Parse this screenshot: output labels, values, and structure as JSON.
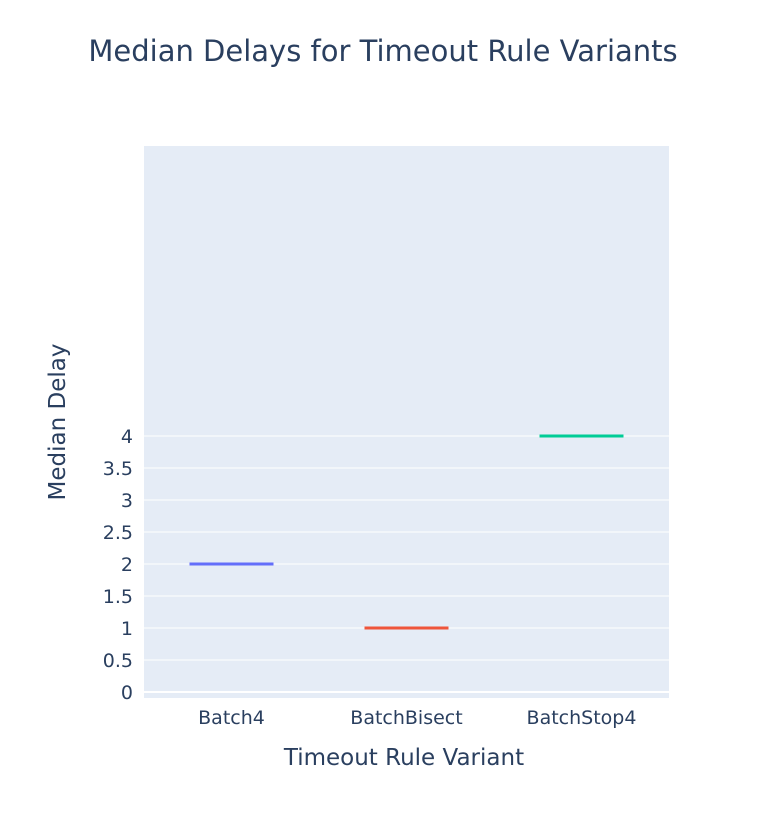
{
  "chart_data": {
    "type": "box",
    "title": "Median Delays for Timeout Rule Variants",
    "xlabel": "Timeout Rule Variant",
    "ylabel": "Median Delay",
    "categories": [
      "Batch4",
      "BatchBisect",
      "BatchStop4"
    ],
    "values": [
      2,
      1,
      4
    ],
    "colors": [
      "#636efa",
      "#ef553b",
      "#00cc96"
    ],
    "yticks": [
      "0",
      "0.5",
      "1",
      "1.5",
      "2",
      "2.5",
      "3",
      "3.5",
      "4"
    ],
    "ylim": [
      -0.05,
      4.25
    ],
    "grid": true,
    "legend": "none",
    "plot_background": "#e5ecf6"
  }
}
